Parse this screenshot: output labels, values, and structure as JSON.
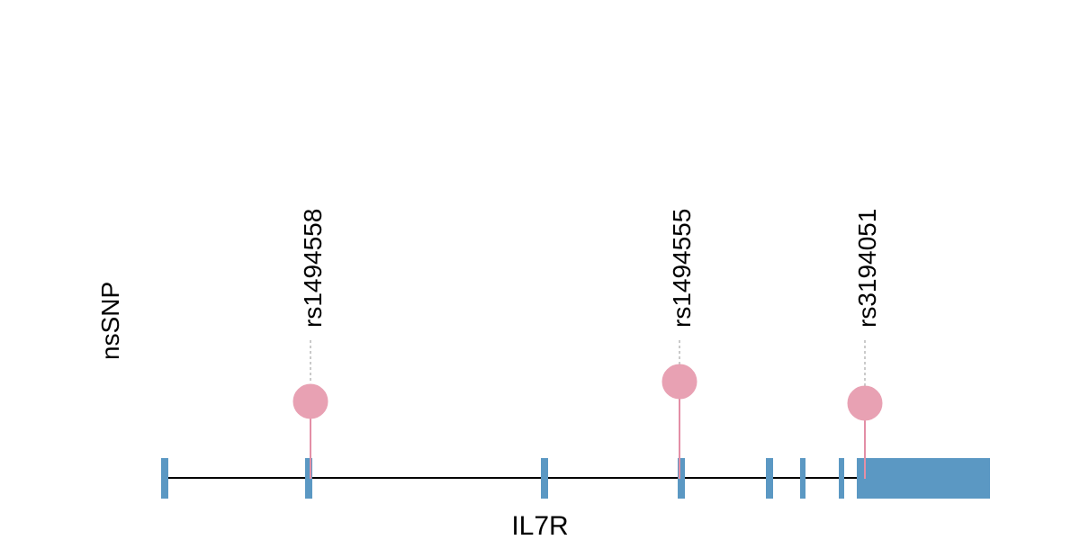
{
  "track_label": "nsSNP",
  "gene_name": "IL7R",
  "colors": {
    "exon": "#5b98c3",
    "intron": "#000000",
    "lollipop_head": "#e8a1b3",
    "lollipop_stick": "#e38fa6",
    "guide": "#b8b8b8"
  },
  "snps": [
    {
      "id": "rs1494558",
      "exon_index": 1,
      "height_rank": 2
    },
    {
      "id": "rs1494555",
      "exon_index": 3,
      "height_rank": 1
    },
    {
      "id": "rs3194051",
      "exon_index": 7,
      "height_rank": 3
    }
  ],
  "exon_count": 8
}
